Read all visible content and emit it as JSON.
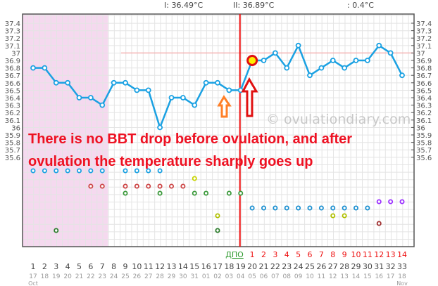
{
  "header": {
    "phase1": "I: 36.49°C",
    "phase2": "II: 36.89°C",
    "diff": ": 0.4°C"
  },
  "annotation": {
    "line1": "There is no BBT drop before ovulation, and after",
    "line2": "ovulation the temperature sharply goes up"
  },
  "watermark": "© ovulationdiary.com",
  "colors": {
    "line": "#1ba1e2",
    "ovulation_line": "#ee1111",
    "menses": "#f5d9ef",
    "annotation": "#ee1122",
    "arrow_orange": "#ff7f27"
  },
  "chart_data": {
    "type": "line",
    "ylim": [
      35.6,
      37.4
    ],
    "y_ticks": [
      "35.6",
      "35.7",
      "35.8",
      "35.9",
      "36",
      "36.1",
      "36.2",
      "36.3",
      "36.4",
      "36.5",
      "36.6",
      "36.7",
      "36.8",
      "36.9",
      "37",
      "37.1",
      "37.2",
      "37.3",
      "37.4"
    ],
    "cycle_days": [
      1,
      2,
      3,
      4,
      5,
      6,
      7,
      8,
      9,
      10,
      11,
      12,
      13,
      14,
      15,
      16,
      17,
      18,
      19,
      20,
      21,
      22,
      23,
      24,
      25,
      26,
      27,
      28,
      29,
      30,
      31,
      32,
      33
    ],
    "dates": [
      "17",
      "18",
      "19",
      "20",
      "21",
      "22",
      "23",
      "24",
      "25",
      "26",
      "27",
      "28",
      "29",
      "30",
      "31",
      "01",
      "02",
      "03",
      "04",
      "05",
      "06",
      "07",
      "08",
      "09",
      "10",
      "11",
      "12",
      "13",
      "14",
      "15",
      "16",
      "17",
      "18"
    ],
    "months": [
      {
        "label": "Oct",
        "day": 1
      },
      {
        "label": "Nov",
        "day": 33
      }
    ],
    "temperatures": [
      36.8,
      36.8,
      36.6,
      36.6,
      36.4,
      36.4,
      36.3,
      36.6,
      36.6,
      36.5,
      36.5,
      36.0,
      36.4,
      36.4,
      36.3,
      36.6,
      36.6,
      36.5,
      36.5,
      36.9,
      36.9,
      37.0,
      36.8,
      37.1,
      36.7,
      36.8,
      36.9,
      36.8,
      36.9,
      36.9,
      37.1,
      37.0,
      36.7
    ],
    "menses_days": [
      1,
      7
    ],
    "ovulation_day": 19,
    "ovulation_marker_day": 20,
    "coverline": 37.0,
    "dpo_label": "ДПО",
    "dpo_days": [
      1,
      2,
      3,
      4,
      5,
      6,
      7,
      8,
      9,
      10,
      11,
      12,
      13,
      14
    ],
    "grid": true,
    "symptom_rows": [
      {
        "color": "#1ba1e2",
        "days": [
          1,
          2,
          3,
          4,
          5,
          6,
          7,
          9,
          10,
          11,
          12
        ]
      },
      {
        "color": "#c8d400",
        "days": [
          15
        ]
      },
      {
        "color": "#cc4444",
        "days": [
          6,
          7,
          9,
          10,
          11,
          12,
          13,
          14
        ]
      },
      {
        "color": "#3c9a3c",
        "days": [
          9,
          12,
          15,
          16,
          18,
          19
        ]
      },
      {
        "color": "#9b30ff",
        "days": [
          31,
          32,
          33
        ]
      },
      {
        "color": "#1b8fd0",
        "days": [
          20,
          21,
          22,
          23,
          24,
          25,
          26,
          27,
          28,
          29,
          30
        ]
      },
      {
        "color": "#b0c000",
        "days": [
          17,
          27,
          28
        ]
      },
      {
        "color": "#a03030",
        "days": [
          31
        ]
      },
      {
        "color": "#2e7d2e",
        "days": [
          3,
          17
        ]
      }
    ]
  }
}
